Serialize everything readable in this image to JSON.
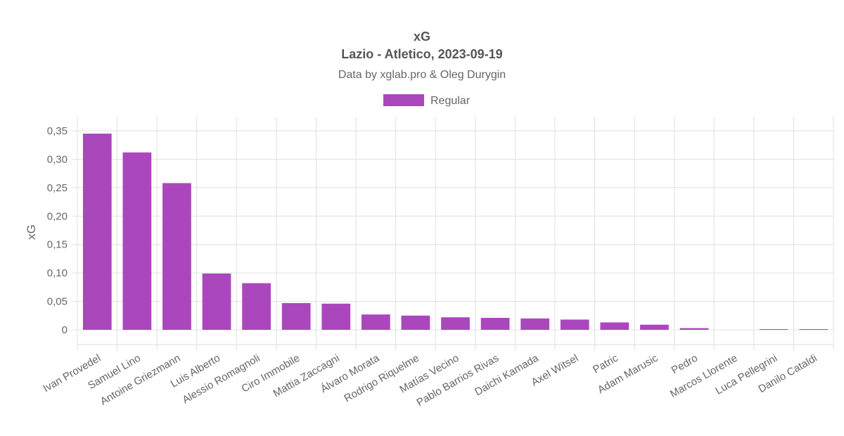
{
  "chart_data": {
    "type": "bar",
    "title": "xG",
    "subtitle": "Lazio - Atletico, 2023-09-19",
    "caption": "Data by xglab.pro & Oleg Durygin",
    "ylabel": "xG",
    "xlabel": "",
    "ylim": [
      -0.03,
      0.35
    ],
    "yticks": [
      0,
      0.05,
      0.1,
      0.15,
      0.2,
      0.25,
      0.3,
      0.35
    ],
    "ytick_labels": [
      "0",
      "0,05",
      "0,10",
      "0,15",
      "0,20",
      "0,25",
      "0,30",
      "0,35"
    ],
    "legend_position": "top-center",
    "grid": true,
    "categories": [
      "Ivan Provedel",
      "Samuel Lino",
      "Antoine Griezmann",
      "Luis Alberto",
      "Alessio Romagnoli",
      "Ciro Immobile",
      "Mattia Zaccagni",
      "Álvaro Morata",
      "Rodrigo Riquelme",
      "Matías Vecino",
      "Pablo Barrios Rivas",
      "Daichi Kamada",
      "Axel Witsel",
      "Patric",
      "Adam Marusic",
      "Pedro",
      "Marcos Llorente",
      "Luca Pellegrini",
      "Danilo Cataldi"
    ],
    "series": [
      {
        "name": "Regular",
        "color": "#ab47bc",
        "values": [
          0.345,
          0.312,
          0.258,
          0.099,
          0.082,
          0.047,
          0.046,
          0.027,
          0.025,
          0.022,
          0.021,
          0.02,
          0.018,
          0.013,
          0.009,
          0.003,
          0.0,
          0.001,
          0.001
        ]
      }
    ]
  }
}
